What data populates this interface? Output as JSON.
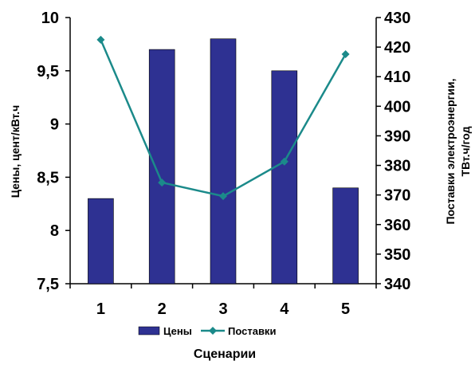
{
  "chart_data": {
    "type": "bar+line",
    "categories": [
      "1",
      "2",
      "3",
      "4",
      "5"
    ],
    "series": [
      {
        "name": "Цены",
        "type": "bar",
        "axis": "left",
        "values": [
          8.3,
          9.7,
          9.8,
          9.5,
          8.4
        ],
        "color": "#2E3192"
      },
      {
        "name": "Поставки",
        "type": "line",
        "axis": "right",
        "values": [
          422.5,
          374.2,
          369.6,
          381.3,
          417.6
        ],
        "color": "#1B8A8A"
      }
    ],
    "y_left": {
      "label": "Цены, цент/кВт.ч",
      "ylim": [
        7.5,
        10
      ],
      "ticks": [
        "7,5",
        "8",
        "8,5",
        "9",
        "9,5",
        "10"
      ],
      "tick_values": [
        7.5,
        8,
        8.5,
        9,
        9.5,
        10
      ]
    },
    "y_right": {
      "label_line1": "Поставки электроэнергии,",
      "label_line2": "ТВт.ч/год",
      "ylim": [
        340,
        430
      ],
      "ticks": [
        "340",
        "350",
        "360",
        "370",
        "380",
        "390",
        "400",
        "410",
        "420",
        "430"
      ],
      "tick_values": [
        340,
        350,
        360,
        370,
        380,
        390,
        400,
        410,
        420,
        430
      ]
    },
    "xlabel": "Сценарии",
    "legend": {
      "placement": "bottom",
      "items": [
        "Цены",
        "Поставки"
      ]
    },
    "grid": false
  }
}
